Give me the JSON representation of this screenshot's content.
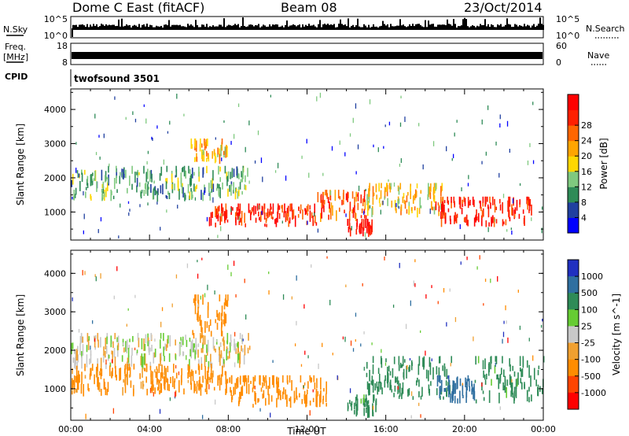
{
  "header": {
    "station": "Dome C East (fitACF)",
    "beam": "Beam 08",
    "date": "23/Oct/2014"
  },
  "panels": {
    "nsky_label": "N.Sky",
    "nsky_ticks": [
      "10^5",
      "10^0"
    ],
    "nsearch_label": "N.Search",
    "nsearch_ticks": [
      "10^5",
      "10^0"
    ],
    "freq_label": "Freq.",
    "freq_unit": "[MHz]",
    "freq_ticks": [
      "18",
      "8"
    ],
    "nave_label": "Nave",
    "nave_ticks": [
      "60",
      "0"
    ],
    "cpid_label": "CPID",
    "cpid_text": "twofsound 3501"
  },
  "colors": {
    "power_scale": [
      "#0000ff",
      "#2040a0",
      "#2e8b57",
      "#7fc97f",
      "#ffd700",
      "#ffa500",
      "#ff6600",
      "#ff2000",
      "#ff0000"
    ],
    "velocity_scale": [
      "#2030c0",
      "#2f6fa0",
      "#2e8b57",
      "#66cc33",
      "#c8c8c8",
      "#f0a030",
      "#ff8c00",
      "#ff4500",
      "#ff0000"
    ]
  },
  "chart_data": [
    {
      "type": "heatmap",
      "name": "power",
      "xlabel": "Time UT",
      "ylabel": "Slant Range [km]",
      "x_ticks": [
        "00:00",
        "04:00",
        "08:00",
        "12:00",
        "16:00",
        "20:00",
        "00:00"
      ],
      "y_ticks": [
        1000,
        2000,
        3000,
        4000
      ],
      "xlim": [
        0,
        24
      ],
      "ylim": [
        180,
        4600
      ],
      "colorbar_label": "Power [dB]",
      "colorbar_ticks": [
        "4",
        "8",
        "12",
        "16",
        "20",
        "24",
        "28"
      ],
      "colorbar_range": [
        0,
        32
      ],
      "regions": [
        {
          "x": [
            0,
            9
          ],
          "y": [
            1300,
            2200
          ],
          "value": 11
        },
        {
          "x": [
            6,
            8
          ],
          "y": [
            2400,
            3000
          ],
          "value": 19
        },
        {
          "x": [
            7,
            12.5
          ],
          "y": [
            550,
            1100
          ],
          "value": 27
        },
        {
          "x": [
            12.5,
            15
          ],
          "y": [
            700,
            1500
          ],
          "value": 24
        },
        {
          "x": [
            14,
            15.3
          ],
          "y": [
            250,
            650
          ],
          "value": 30
        },
        {
          "x": [
            15,
            19
          ],
          "y": [
            800,
            1700
          ],
          "value": 18
        },
        {
          "x": [
            18.5,
            23.5
          ],
          "y": [
            550,
            1300
          ],
          "value": 28
        }
      ]
    },
    {
      "type": "heatmap",
      "name": "velocity",
      "xlabel": "Time UT",
      "ylabel": "Slant Range [km]",
      "x_ticks": [
        "00:00",
        "04:00",
        "08:00",
        "12:00",
        "16:00",
        "20:00",
        "00:00"
      ],
      "y_ticks": [
        1000,
        2000,
        3000,
        4000
      ],
      "xlim": [
        0,
        24
      ],
      "ylim": [
        180,
        4600
      ],
      "colorbar_label": "Velocity [m s^-1]",
      "colorbar_ticks": [
        "1000",
        "500",
        "100",
        "25",
        "-25",
        "-100",
        "-500",
        "-1000"
      ],
      "regions": [
        {
          "x": [
            0,
            9
          ],
          "y": [
            1500,
            2300
          ],
          "value": 0
        },
        {
          "x": [
            0,
            8
          ],
          "y": [
            800,
            1500
          ],
          "value": -150
        },
        {
          "x": [
            6,
            8
          ],
          "y": [
            2300,
            3300
          ],
          "value": -300
        },
        {
          "x": [
            8,
            13
          ],
          "y": [
            500,
            1200
          ],
          "value": -300
        },
        {
          "x": [
            14,
            15.5
          ],
          "y": [
            200,
            700
          ],
          "value": 150
        },
        {
          "x": [
            15,
            19.5
          ],
          "y": [
            700,
            1700
          ],
          "value": 200
        },
        {
          "x": [
            18.5,
            20.5
          ],
          "y": [
            600,
            1200
          ],
          "value": 800
        },
        {
          "x": [
            20.5,
            24
          ],
          "y": [
            600,
            1700
          ],
          "value": 150
        }
      ]
    }
  ]
}
